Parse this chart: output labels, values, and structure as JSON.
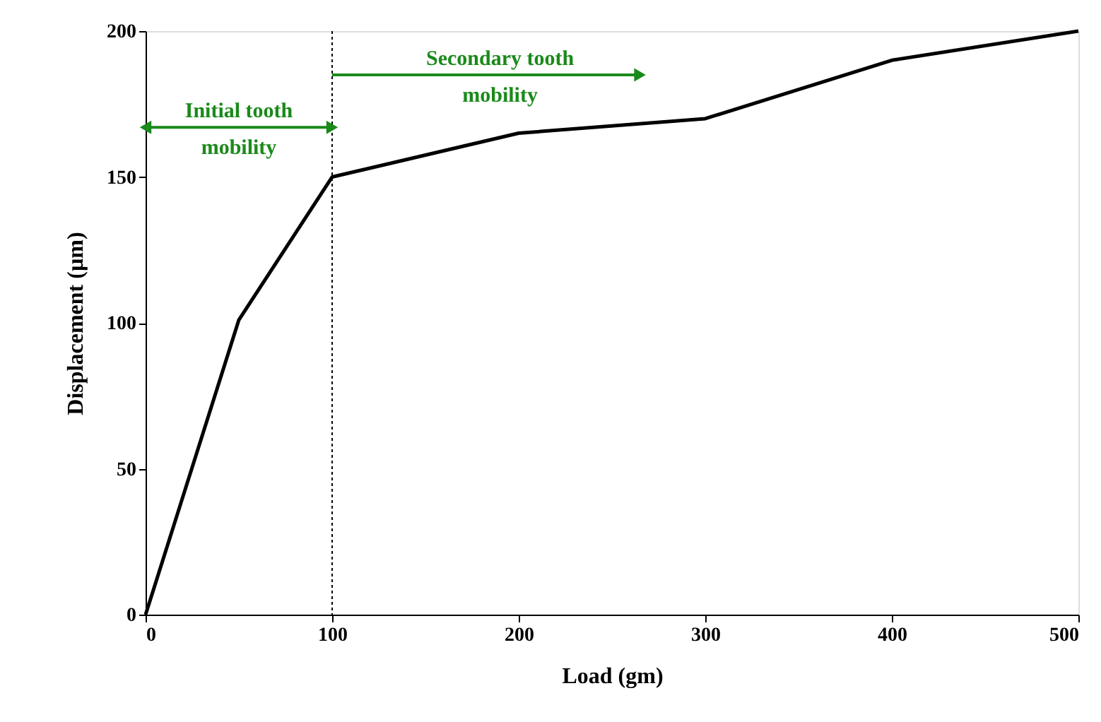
{
  "chart_data": {
    "type": "line",
    "xlabel": "Load (gm)",
    "ylabel": "Displacement (µm)",
    "x": [
      0,
      50,
      100,
      200,
      300,
      400,
      500
    ],
    "series": [
      {
        "color": "#000000",
        "values": [
          0,
          101,
          150,
          165,
          170,
          190,
          200
        ]
      }
    ],
    "xlim": [
      0,
      500
    ],
    "xticks": [
      0,
      100,
      200,
      300,
      400,
      500
    ],
    "ylim": [
      0,
      200
    ],
    "yticks": [
      0,
      50,
      100,
      150,
      200
    ],
    "ref_lines": [
      {
        "axis": "x",
        "value": 100,
        "color": "#000000",
        "line_style": "dotted"
      }
    ],
    "annotations": [
      "Initial tooth mobility",
      "Secondary tooth mobility"
    ],
    "grid": false,
    "marker": "none",
    "line_style": "solid"
  }
}
